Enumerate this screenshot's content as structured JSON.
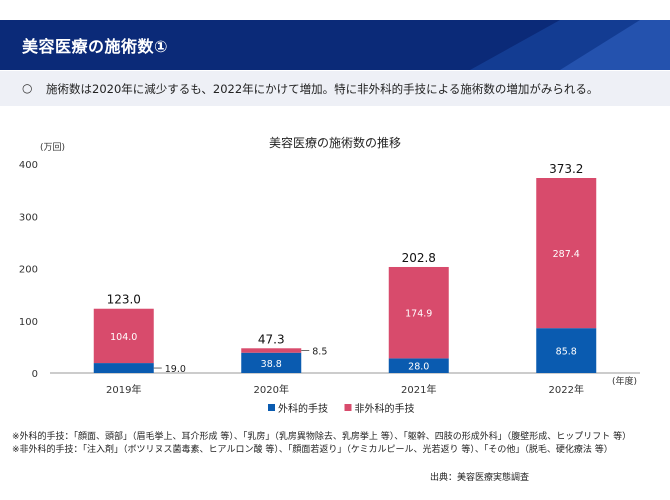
{
  "header": {
    "title": "美容医療の施術数①"
  },
  "summary": {
    "bullet": "○",
    "text": "施術数は2020年に減少するも、2022年にかけて増加。特に非外科的手技による施術数の増加がみられる。"
  },
  "colors": {
    "header_bg": "#0b2a78",
    "surgical": "#0a5bb0",
    "nonsurgical": "#d84b6c"
  },
  "chart_data": {
    "type": "bar",
    "stacked": true,
    "title": "美容医療の施術数の推移",
    "ylabel": "(万回)",
    "xlabel": "(年度)",
    "ylim": [
      0,
      400
    ],
    "yticks": [
      0,
      100,
      200,
      300,
      400
    ],
    "categories": [
      "2019年",
      "2020年",
      "2021年",
      "2022年"
    ],
    "series": [
      {
        "name": "外科的手技",
        "values": [
          19.0,
          38.8,
          28.0,
          85.8
        ],
        "labels": [
          "19.0",
          "38.8",
          "28.0",
          "85.8"
        ]
      },
      {
        "name": "非外科的手技",
        "values": [
          104.0,
          8.5,
          174.9,
          287.4
        ],
        "labels": [
          "104.0",
          "8.5",
          "174.9",
          "287.4"
        ]
      }
    ],
    "totals": [
      "123.0",
      "47.3",
      "202.8",
      "373.2"
    ],
    "legend_position": "bottom",
    "grid": false
  },
  "notes": {
    "surgical": "※外科的手技：「顔面、頭部」（眉毛挙上、耳介形成 等）、「乳房」（乳房異物除去、乳房挙上 等）、「躯幹、四肢の形成外科」（腹壁形成、ヒップリフト 等）",
    "nonsurgical": "※非外科的手技：「注入剤」（ボツリヌス菌毒素、ヒアルロン酸 等）、「顔面若返り」（ケミカルピール、光若返り 等）、「その他」（脱毛、硬化療法 等）"
  },
  "source": "出典：美容医療実態調査"
}
